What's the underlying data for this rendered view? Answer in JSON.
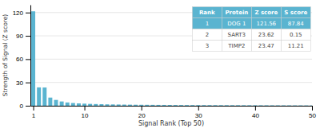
{
  "chart_data": {
    "type": "bar",
    "xlabel": "Signal Rank (Top 50)",
    "ylabel": "Strength of Signal (Z score)",
    "x": [
      1,
      2,
      3,
      4,
      5,
      6,
      7,
      8,
      9,
      10,
      11,
      12,
      13,
      14,
      15,
      16,
      17,
      18,
      19,
      20,
      21,
      22,
      23,
      24,
      25,
      26,
      27,
      28,
      29,
      30,
      31,
      32,
      33,
      34,
      35,
      36,
      37,
      38,
      39,
      40,
      41,
      42,
      43,
      44,
      45,
      46,
      47,
      48,
      49,
      50
    ],
    "values": [
      121.56,
      23.62,
      23.47,
      10.5,
      7.5,
      5.5,
      4.2,
      3.5,
      3.0,
      2.7,
      2.4,
      2.2,
      2.0,
      1.8,
      1.7,
      1.6,
      1.5,
      1.4,
      1.3,
      1.25,
      1.2,
      1.15,
      1.1,
      1.05,
      1.0,
      0.95,
      0.9,
      0.87,
      0.84,
      0.82,
      0.8,
      0.78,
      0.76,
      0.74,
      0.72,
      0.7,
      0.68,
      0.66,
      0.64,
      0.62,
      0.6,
      0.58,
      0.56,
      0.54,
      0.52,
      0.5,
      0.48,
      0.46,
      0.44,
      0.42
    ],
    "color": "#5ab4d0",
    "xlim": [
      0.5,
      50
    ],
    "xticks": [
      1,
      10,
      20,
      30,
      40,
      50
    ],
    "ylim": [
      0,
      130
    ],
    "yticks": [
      0,
      30,
      60,
      90,
      120
    ],
    "grid": true,
    "table": {
      "header": [
        "Rank",
        "Protein",
        "Z score",
        "S score"
      ],
      "rows": [
        [
          "1",
          "DOG 1",
          "121.56",
          "87.84"
        ],
        [
          "2",
          "SART3",
          "23.62",
          "0.15"
        ],
        [
          "3",
          "TIMP2",
          "23.47",
          "11.21"
        ]
      ]
    }
  }
}
